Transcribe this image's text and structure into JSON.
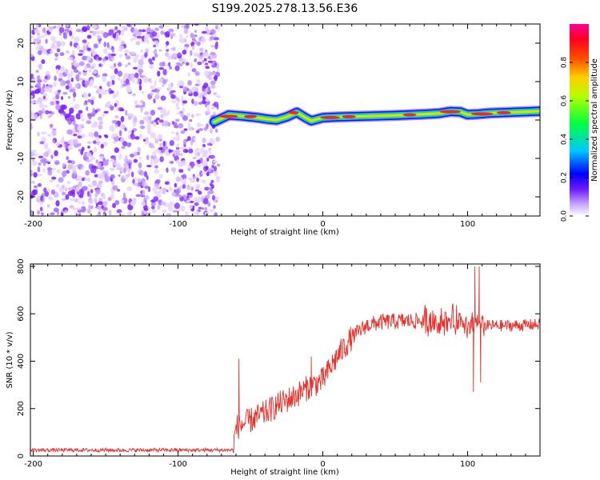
{
  "figure_title": "S199.2025.278.13.56.E36",
  "chart_data": [
    {
      "type": "heatmap",
      "xlabel": "Height of straight line (km)",
      "ylabel": "Frequency (Hz)",
      "xlim": [
        -202,
        150
      ],
      "ylim": [
        -25,
        25
      ],
      "xticks": [
        -200,
        -100,
        0,
        100
      ],
      "yticks": [
        -20,
        -10,
        0,
        10,
        20
      ],
      "colorbar": {
        "label": "Normalized spectral amplitude",
        "range": [
          0,
          1
        ],
        "ticks": [
          0.0,
          0.2,
          0.4,
          0.6,
          0.8
        ],
        "colors": [
          "#ffffff",
          "#9a9aff",
          "#0000ff",
          "#00c8ff",
          "#00ff00",
          "#ffff00",
          "#ff8000",
          "#ff0000",
          "#ff0090"
        ]
      },
      "noise_region": {
        "x_range": [
          -202,
          -72
        ],
        "y_range": [
          -25,
          25
        ],
        "amplitude_range": [
          0.0,
          0.1
        ]
      },
      "signal_band": [
        {
          "x": -75,
          "f": -0.5
        },
        {
          "x": -65,
          "f": 1.3
        },
        {
          "x": -55,
          "f": 1.0
        },
        {
          "x": -45,
          "f": 0.6
        },
        {
          "x": -38,
          "f": 0.2
        },
        {
          "x": -32,
          "f": 0.0
        },
        {
          "x": -25,
          "f": 0.8
        },
        {
          "x": -18,
          "f": 2.0
        },
        {
          "x": -12,
          "f": 0.6
        },
        {
          "x": -8,
          "f": -0.2
        },
        {
          "x": 0,
          "f": 0.6
        },
        {
          "x": 10,
          "f": 0.8
        },
        {
          "x": 20,
          "f": 0.9
        },
        {
          "x": 30,
          "f": 1.0
        },
        {
          "x": 50,
          "f": 1.2
        },
        {
          "x": 70,
          "f": 1.5
        },
        {
          "x": 80,
          "f": 1.7
        },
        {
          "x": 88,
          "f": 2.2
        },
        {
          "x": 95,
          "f": 2.1
        },
        {
          "x": 100,
          "f": 1.4
        },
        {
          "x": 106,
          "f": 1.5
        },
        {
          "x": 115,
          "f": 1.8
        },
        {
          "x": 130,
          "f": 2.0
        },
        {
          "x": 150,
          "f": 2.3
        }
      ]
    },
    {
      "type": "line",
      "xlabel": "Height of straight line (km)",
      "ylabel": "SNR (10 * v/v)",
      "xlim": [
        -202,
        150
      ],
      "ylim": [
        0,
        810
      ],
      "xticks": [
        -200,
        -100,
        0,
        100
      ],
      "yticks": [
        0,
        200,
        400,
        600,
        800
      ],
      "color": "#e8302a",
      "series": [
        {
          "x": -202,
          "y": 25
        },
        {
          "x": -150,
          "y": 25
        },
        {
          "x": -100,
          "y": 25
        },
        {
          "x": -62,
          "y": 25
        },
        {
          "x": -60,
          "y": 120
        },
        {
          "x": -50,
          "y": 150
        },
        {
          "x": -40,
          "y": 180
        },
        {
          "x": -30,
          "y": 220
        },
        {
          "x": -20,
          "y": 250
        },
        {
          "x": -10,
          "y": 290
        },
        {
          "x": 0,
          "y": 320
        },
        {
          "x": 10,
          "y": 420
        },
        {
          "x": 20,
          "y": 500
        },
        {
          "x": 30,
          "y": 550
        },
        {
          "x": 40,
          "y": 565
        },
        {
          "x": 60,
          "y": 570
        },
        {
          "x": 80,
          "y": 570
        },
        {
          "x": 90,
          "y": 570
        },
        {
          "x": 100,
          "y": 560
        },
        {
          "x": 110,
          "y": 550
        },
        {
          "x": 130,
          "y": 550
        },
        {
          "x": 150,
          "y": 555
        }
      ],
      "spikes": [
        {
          "x": -58,
          "y": 410
        },
        {
          "x": -8,
          "y": 420
        },
        {
          "x": 104,
          "y": 270
        },
        {
          "x": 105,
          "y": 800
        },
        {
          "x": 108,
          "y": 800
        },
        {
          "x": 109,
          "y": 310
        }
      ]
    }
  ]
}
